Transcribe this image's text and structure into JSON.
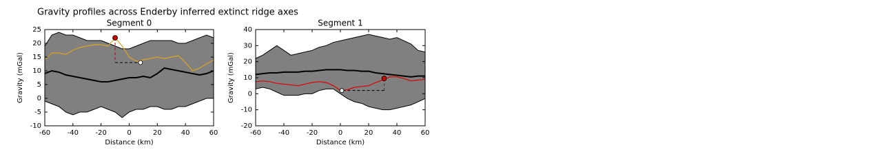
{
  "title": "Gravity profiles across Enderby inferred extinct ridge axes",
  "chart_data": [
    {
      "type": "line",
      "title": "Segment 0",
      "x_label": "Distance (km)",
      "y_label": "Gravity (mGal)",
      "xlim": [
        -60,
        60
      ],
      "xticks": [
        -60,
        -40,
        -20,
        0,
        20,
        40,
        60
      ],
      "ylim": [
        -10,
        25
      ],
      "yticks": [
        -10,
        -5,
        0,
        5,
        10,
        15,
        20,
        25
      ],
      "x": [
        -60,
        -55,
        -50,
        -45,
        -40,
        -35,
        -30,
        -25,
        -20,
        -15,
        -10,
        -5,
        0,
        5,
        10,
        15,
        20,
        25,
        30,
        35,
        40,
        45,
        50,
        55,
        60
      ],
      "band": {
        "color": "#808080",
        "upper": [
          19,
          23,
          24,
          23,
          23,
          22,
          21,
          21,
          21,
          20,
          19,
          18,
          18,
          19,
          20,
          21,
          21,
          21,
          21,
          20,
          20,
          21,
          22,
          23,
          22
        ],
        "lower": [
          -1,
          -2,
          -3,
          -5,
          -6,
          -5,
          -5,
          -4,
          -3,
          -4,
          -5,
          -7,
          -5,
          -4,
          -4,
          -3,
          -3,
          -4,
          -4,
          -3,
          -3,
          -2,
          -1,
          0,
          0
        ]
      },
      "series": [
        {
          "color": "#000000",
          "width": 2,
          "values": [
            9,
            10,
            9.5,
            8.5,
            8,
            7.5,
            7,
            6.5,
            6,
            6,
            6.5,
            7,
            7.5,
            7.5,
            8,
            7.5,
            9,
            11,
            10.5,
            10,
            9.5,
            9,
            8.5,
            9,
            10
          ]
        },
        {
          "color": "#daa520",
          "width": 1.2,
          "values": [
            14,
            16.5,
            16.5,
            16,
            17.5,
            18.5,
            19,
            19.5,
            19.5,
            19,
            22,
            19,
            15,
            13.5,
            14,
            14.5,
            15,
            14.5,
            15,
            15.5,
            13,
            10,
            11,
            12.5,
            14
          ]
        }
      ],
      "peak": {
        "x": -10,
        "y": 22,
        "color": "#cc0000"
      },
      "trough": {
        "x": 8,
        "y": 13,
        "color": "#ffffff"
      }
    },
    {
      "type": "line",
      "title": "Segment 1",
      "x_label": "Distance (km)",
      "y_label": "Gravity (mGal)",
      "xlim": [
        -60,
        60
      ],
      "xticks": [
        -60,
        -40,
        -20,
        0,
        20,
        40,
        60
      ],
      "ylim": [
        -20,
        40
      ],
      "yticks": [
        -20,
        -10,
        0,
        10,
        20,
        30,
        40
      ],
      "x": [
        -60,
        -55,
        -50,
        -45,
        -40,
        -35,
        -30,
        -25,
        -20,
        -15,
        -10,
        -5,
        0,
        5,
        10,
        15,
        20,
        25,
        30,
        35,
        40,
        45,
        50,
        55,
        60
      ],
      "band": {
        "color": "#808080",
        "upper": [
          22,
          24,
          27,
          30,
          27,
          24,
          25,
          26,
          27,
          29,
          30,
          32,
          33,
          34,
          35,
          36,
          37,
          36,
          35,
          34,
          35,
          33,
          31,
          27,
          26
        ],
        "lower": [
          3,
          4,
          3,
          1,
          -1,
          -1,
          -1,
          0,
          0,
          2,
          3,
          3,
          0,
          -3,
          -5,
          -6,
          -8,
          -9,
          -10,
          -10,
          -9,
          -8,
          -7,
          -5,
          -3
        ]
      },
      "series": [
        {
          "color": "#000000",
          "width": 2,
          "values": [
            12,
            12.5,
            13,
            13,
            13.5,
            13.5,
            13.5,
            14,
            14,
            14.5,
            15,
            15,
            15,
            14.5,
            14.5,
            14,
            14,
            13,
            12.5,
            12,
            11.5,
            11,
            10.5,
            11,
            11
          ]
        },
        {
          "color": "#dd0000",
          "width": 1.2,
          "values": [
            7.5,
            8,
            7.5,
            6.5,
            6,
            5.5,
            5,
            6,
            7,
            7.5,
            7,
            5,
            2,
            2.5,
            4,
            4.5,
            5,
            7,
            8.5,
            10.5,
            10.5,
            9.5,
            8,
            8.5,
            9
          ]
        }
      ],
      "peak": {
        "x": 31,
        "y": 9.5,
        "color": "#cc0000"
      },
      "trough": {
        "x": 1,
        "y": 2,
        "color": "#ffffff"
      }
    }
  ]
}
